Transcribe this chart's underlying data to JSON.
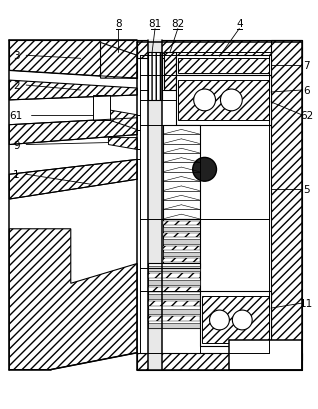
{
  "bg_color": "#ffffff",
  "line_color": "#000000",
  "figsize": [
    3.18,
    4.1
  ],
  "dpi": 100,
  "lw_main": 1.2,
  "lw_thin": 0.6,
  "hatch_density": "////"
}
